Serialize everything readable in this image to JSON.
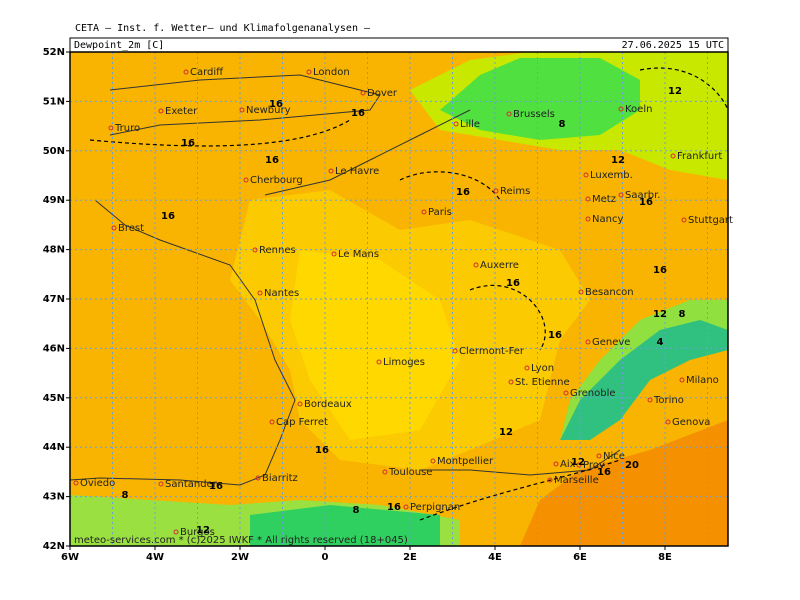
{
  "header": {
    "source": "CETA – Inst. f. Wetter– und Klimafolgenanalysen –",
    "variable": "Dewpoint_2m [C]",
    "datetime": "27.06.2025 15 UTC"
  },
  "x_axis": {
    "labels": [
      "6W",
      "4W",
      "2W",
      "0",
      "2E",
      "4E",
      "6E",
      "8E"
    ]
  },
  "y_axis": {
    "labels": [
      "52N",
      "51N",
      "50N",
      "49N",
      "48N",
      "47N",
      "46N",
      "45N",
      "44N",
      "43N",
      "42N"
    ]
  },
  "cities": [
    "Cardiff",
    "London",
    "Dover",
    "Exeter",
    "Newbury",
    "Truro",
    "Lille",
    "Brussels",
    "Koeln",
    "Frankfurt",
    "Luxemb.",
    "Le Havre",
    "Reims",
    "Metz",
    "Saarbr.",
    "Cherbourg",
    "Paris",
    "Nancy",
    "Stuttgart",
    "Brest",
    "Rennes",
    "Le Mans",
    "Auxerre",
    "Nantes",
    "Besancon",
    "Geneve",
    "Clermont-Fer",
    "Limoges",
    "Lyon",
    "St. Etienne",
    "Milano",
    "Grenoble",
    "Bordeaux",
    "Torino",
    "Cap Ferret",
    "Genova",
    "Nice",
    "Montpellier",
    "Aix",
    "Prov",
    "Toulouse",
    "Biarritz",
    "Marseille",
    "Oviedo",
    "Santander",
    "Perpignan",
    "Burgos"
  ],
  "contour_labels": [
    "12",
    "16",
    "16",
    "16",
    "16",
    "16",
    "8",
    "12",
    "16",
    "16",
    "16",
    "12",
    "8",
    "4",
    "12",
    "16",
    "16",
    "16",
    "20",
    "12",
    "8",
    "8",
    "16",
    "12",
    "16",
    "16"
  ],
  "footer": "meteo-services.com * (c)2025 IWKF * All rights reserved (18+045)"
}
